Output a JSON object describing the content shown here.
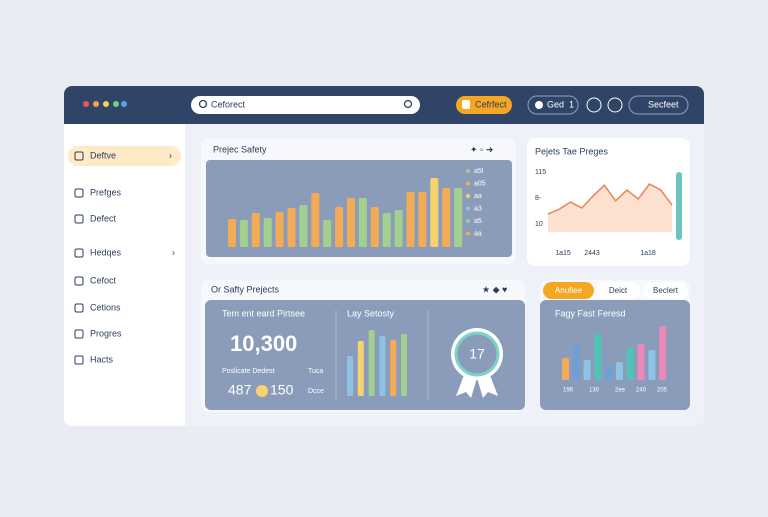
{
  "topbar": {
    "search": "Ceforect",
    "primary_button": "Cefrfect",
    "ged_button": "Ged",
    "ged_count": "1",
    "right_button": "Secfeet"
  },
  "sidebar": {
    "items": [
      "Deftve",
      "Prefges",
      "Defect",
      "Hedqes",
      "Cefoct",
      "Cetions",
      "Progres",
      "Hacts"
    ]
  },
  "cards": [
    {
      "title": "Prejec Safety",
      "bars": {
        "values": [
          28,
          27,
          34,
          29,
          35,
          39,
          42,
          54,
          27,
          40,
          49,
          49,
          40,
          34,
          37,
          55,
          55,
          69,
          59,
          59
        ],
        "colors": [
          "#f4ab55",
          "#a3d08e",
          "#f4ab55",
          "#a3d08e",
          "#f4ab55",
          "#f4ab55",
          "#a3d08e",
          "#f4ab55",
          "#a3d08e",
          "#f4ab55",
          "#f4ab55",
          "#a3d08e",
          "#f4ab55",
          "#a3d08e",
          "#a3d08e",
          "#f4ab55",
          "#f4ab55",
          "#f6d36f",
          "#f4ab55",
          "#a3d08e"
        ]
      },
      "legend": [
        "a5l",
        "a05",
        "aa",
        "a3",
        "a5",
        "aa"
      ],
      "legend_colors": [
        "#a3d08e",
        "#f4ab55",
        "#f6d36f",
        "#8ec3e6",
        "#a3d08e",
        "#f4ab55"
      ]
    },
    {
      "title": "Pejets Tae Preges",
      "area": {
        "values": [
          30,
          38,
          50,
          40,
          60,
          78,
          52,
          70,
          55,
          80,
          70,
          45
        ],
        "color": "#e98a5c"
      },
      "ylabels": [
        "115",
        "8-",
        "10"
      ],
      "xlabels": [
        "1a15",
        "2443",
        "1a18"
      ]
    },
    {
      "title": "Or Safty Prejects",
      "stat_title": "Tem ent eard Pirtsee",
      "stat": "10,300",
      "sub_left": "Poslicate Dedest",
      "sub_right": "Tuca",
      "left_num": "487",
      "right_num": "150",
      "foot_right": "Dcce",
      "bars_title": "Lay Setosty",
      "bars": {
        "values": [
          40,
          55,
          66,
          60,
          56,
          62
        ],
        "colors": [
          "#8ec3e6",
          "#f6d36f",
          "#a3d08e",
          "#8ec3e6",
          "#f4ab55",
          "#a3d08e"
        ]
      },
      "badge": "17"
    },
    {
      "tabs": [
        "Anufiee",
        "Deict",
        "Beclert"
      ],
      "title": "Fagy Fast Feresd",
      "bars": {
        "values": [
          22,
          34,
          20,
          46,
          15,
          18,
          32,
          36,
          30,
          54
        ],
        "colors": [
          "#f4ab55",
          "#6f9fd8",
          "#8ec3e6",
          "#4fc3b6",
          "#6f9fd8",
          "#8ec3e6",
          "#4fc3b6",
          "#e98ab8",
          "#8ec3e6",
          "#e98ab8"
        ]
      },
      "xlabels": [
        "196",
        "130",
        "2ee",
        "240",
        "205"
      ]
    }
  ]
}
